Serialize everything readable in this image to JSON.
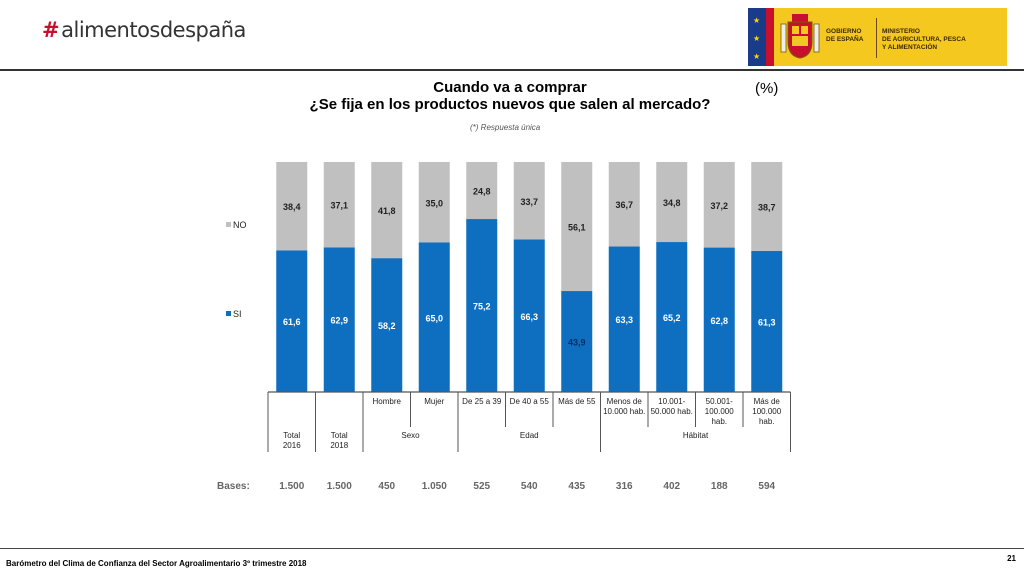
{
  "header": {
    "logo_hash": "#",
    "logo_text": "alimentosdespaña",
    "gov_line1": "GOBIERNO",
    "gov_line2": "DE ESPAÑA",
    "ministry_line1": "MINISTERIO",
    "ministry_line2": "DE AGRICULTURA, PESCA",
    "ministry_line3": "Y ALIMENTACIÓN"
  },
  "colors": {
    "si": "#0e6fc1",
    "no": "#c0c0c0"
  },
  "chart_data": {
    "type": "bar",
    "stacked": true,
    "title_line1": "Cuando va a comprar",
    "title_line2": "¿Se fija en los productos nuevos que salen al mercado?",
    "unit_label": "(%)",
    "note": "(*) Respuesta única",
    "categories": [
      "Total 2016",
      "Total 2018",
      "Hombre",
      "Mujer",
      "De 25 a 39",
      "De 40 a 55",
      "Más de 55",
      "Menos de 10.000 hab.",
      "10.001- 50.000 hab.",
      "50.001- 100.000 hab.",
      "Más de 100.000 hab."
    ],
    "category_labels": [
      [],
      [],
      [
        "Hombre"
      ],
      [
        "Mujer"
      ],
      [
        "De 25 a 39"
      ],
      [
        "De 40 a 55"
      ],
      [
        "Más de 55"
      ],
      [
        "Menos de",
        "10.000 hab."
      ],
      [
        "10.001-",
        "50.000 hab."
      ],
      [
        "50.001-",
        "100.000",
        "hab."
      ],
      [
        "Más de",
        "100.000",
        "hab."
      ]
    ],
    "groups": [
      {
        "lines": [
          "Total",
          "2016"
        ],
        "start": 0,
        "end": 0
      },
      {
        "lines": [
          "Total",
          "2018"
        ],
        "start": 1,
        "end": 1
      },
      {
        "lines": [
          "Sexo"
        ],
        "start": 2,
        "end": 3
      },
      {
        "lines": [
          "Edad"
        ],
        "start": 4,
        "end": 6
      },
      {
        "lines": [
          "Hábitat"
        ],
        "start": 7,
        "end": 10
      }
    ],
    "series": [
      {
        "name": "SI",
        "values": [
          61.6,
          62.9,
          58.2,
          65.0,
          75.2,
          66.3,
          43.9,
          63.3,
          65.2,
          62.8,
          61.3
        ],
        "labels": [
          "61,6",
          "62,9",
          "58,2",
          "65,0",
          "75,2",
          "66,3",
          "43,9",
          "63,3",
          "65,2",
          "62,8",
          "61,3"
        ]
      },
      {
        "name": "NO",
        "values": [
          38.4,
          37.1,
          41.8,
          35.0,
          24.8,
          33.7,
          56.1,
          36.7,
          34.8,
          37.2,
          38.7
        ],
        "labels": [
          "38,4",
          "37,1",
          "41,8",
          "35,0",
          "24,8",
          "33,7",
          "56,1",
          "36,7",
          "34,8",
          "37,2",
          "38,7"
        ]
      }
    ],
    "ylim": [
      0,
      100
    ],
    "legend": "left",
    "bases_label": "Bases:",
    "bases": [
      "1.500",
      "1.500",
      "450",
      "1.050",
      "525",
      "540",
      "435",
      "316",
      "402",
      "188",
      "594"
    ]
  },
  "footer": {
    "text": "Barómetro del Clima de Confianza del Sector Agroalimentario 3º trimestre 2018",
    "page": "21"
  }
}
